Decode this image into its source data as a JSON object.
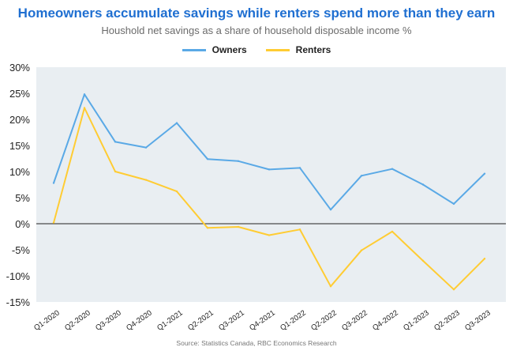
{
  "chart_data": {
    "type": "line",
    "title": "Homeowners accumulate savings while renters spend more than they earn",
    "subtitle": "Houshold net savings as a share of household disposable income %",
    "categories": [
      "Q1-2020",
      "Q2-2020",
      "Q3-2020",
      "Q4-2020",
      "Q1-2021",
      "Q2-2021",
      "Q3-2021",
      "Q4-2021",
      "Q1-2022",
      "Q2-2022",
      "Q3-2022",
      "Q4-2022",
      "Q1-2023",
      "Q2-2023",
      "Q3-2023"
    ],
    "series": [
      {
        "name": "Owners",
        "color": "#5aa9e6",
        "values": [
          7.8,
          24.8,
          15.7,
          14.6,
          19.3,
          12.4,
          12.0,
          10.4,
          10.7,
          2.7,
          9.2,
          10.5,
          7.5,
          3.8,
          9.6
        ]
      },
      {
        "name": "Renters",
        "color": "#ffcc33",
        "values": [
          0.2,
          22.2,
          10.0,
          8.4,
          6.2,
          -0.8,
          -0.6,
          -2.2,
          -1.1,
          -12.0,
          -5.1,
          -1.5,
          -7.1,
          -12.6,
          -6.7
        ]
      }
    ],
    "ylim": [
      -15,
      30
    ],
    "yticks": [
      30,
      25,
      20,
      15,
      10,
      5,
      0,
      -5,
      -10,
      -15
    ],
    "y_tick_format": "%",
    "grid": false,
    "legend": "top-center",
    "source": "Source: Statistics Canada, RBC Economics Research"
  }
}
